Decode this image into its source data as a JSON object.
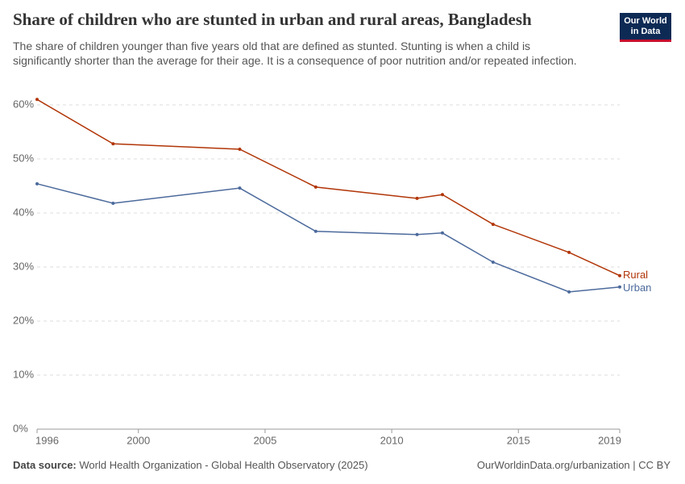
{
  "chart_data": {
    "type": "line",
    "title": "Share of children who are stunted in urban and rural areas, Bangladesh",
    "subtitle": "The share of children younger than five years old that are defined as stunted. Stunting is when a child is significantly shorter than the average for their age. It is a consequence of poor nutrition and/or repeated infection.",
    "logo": [
      "Our World",
      "in Data"
    ],
    "source_label": "Data source:",
    "source": "World Health Organization - Global Health Observatory (2025)",
    "credit": "OurWorldinData.org/urbanization | CC BY",
    "x": [
      1996,
      1999,
      2004,
      2007,
      2011,
      2012,
      2014,
      2017,
      2019
    ],
    "series": [
      {
        "name": "Rural",
        "color": "#b13507",
        "values": [
          61,
          52.8,
          51.8,
          44.8,
          42.7,
          43.4,
          37.9,
          32.7,
          28.4
        ]
      },
      {
        "name": "Urban",
        "color": "#4c6a9c",
        "values": [
          45.4,
          41.8,
          44.6,
          36.6,
          36.0,
          36.3,
          30.9,
          25.4,
          26.3
        ]
      }
    ],
    "xlim": [
      1996,
      2019
    ],
    "xticks": [
      1996,
      2000,
      2005,
      2010,
      2015,
      2019
    ],
    "ylim": [
      0,
      60
    ],
    "yticks": [
      {
        "value": 0,
        "label": "0%"
      },
      {
        "value": 10,
        "label": "10%"
      },
      {
        "value": 20,
        "label": "20%"
      },
      {
        "value": 30,
        "label": "30%"
      },
      {
        "value": 40,
        "label": "40%"
      },
      {
        "value": 50,
        "label": "50%"
      },
      {
        "value": 60,
        "label": "60%"
      }
    ],
    "grid": true
  }
}
